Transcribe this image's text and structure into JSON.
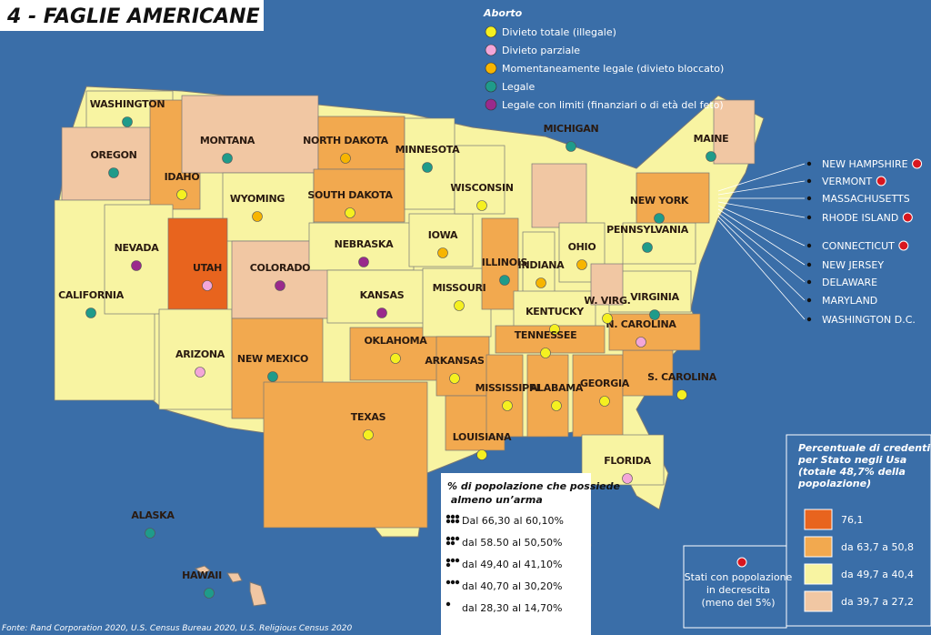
{
  "title": "4 - FAGLIE AMERICANE",
  "abortion_legend": {
    "title": "Aborto",
    "items": [
      {
        "label": "Divieto totale (illegale)",
        "color": "#f5f020"
      },
      {
        "label": "Divieto parziale",
        "color": "#f3a6d8"
      },
      {
        "label": "Momentaneamente legale (divieto bloccato)",
        "color": "#f7b500"
      },
      {
        "label": "Legale",
        "color": "#1f9b8a"
      },
      {
        "label": "Legale con limiti (finanziari o di età del feto)",
        "color": "#9a2a8c"
      }
    ]
  },
  "states": [
    "WASHINGTON",
    "OREGON",
    "CALIFORNIA",
    "IDAHO",
    "NEVADA",
    "MONTANA",
    "WYOMING",
    "UTAH",
    "ARIZONA",
    "COLORADO",
    "NEW MEXICO",
    "NORTH DAKOTA",
    "SOUTH DAKOTA",
    "NEBRASKA",
    "KANSAS",
    "OKLAHOMA",
    "TEXAS",
    "MINNESOTA",
    "IOWA",
    "MISSOURI",
    "ARKANSAS",
    "LOUISIANA",
    "WISCONSIN",
    "ILLINOIS",
    "MICHIGAN",
    "INDIANA",
    "OHIO",
    "KENTUCKY",
    "TENNESSEE",
    "MISSISSIPPI",
    "ALABAMA",
    "GEORGIA",
    "FLORIDA",
    "S. CAROLINA",
    "N. CAROLINA",
    "VIRGINIA",
    "W. VIRG.",
    "PENNSYLVANIA",
    "NEW YORK",
    "MAINE",
    "ALASKA",
    "HAWAII"
  ],
  "east_states": [
    "NEW HAMPSHIRE",
    "VERMONT",
    "MASSACHUSETTS",
    "RHODE ISLAND",
    "CONNECTICUT",
    "NEW JERSEY",
    "DELAWARE",
    "MARYLAND",
    "WASHINGTON D.C."
  ],
  "gun_legend": {
    "title": "% di popolazione che possiede almeno un’arma",
    "items": [
      "Dal 66,30 al 60,10%",
      "dal 58.50 al 50,50%",
      "dal 49,40 al 41,10%",
      "dal 40,70 al 30,20%",
      "dal 28,30 al 14,70%"
    ]
  },
  "believers_legend": {
    "title": "Percentuale di credenti per Stato negli Usa (totale 48,7% della popolazione)",
    "items": [
      {
        "label": "76,1",
        "color": "#e8641e"
      },
      {
        "label": "da 63,7 a 50,8",
        "color": "#f2a94f"
      },
      {
        "label": "da 49,7 a 40,4",
        "color": "#f8f4a2"
      },
      {
        "label": "da 39,7 a 27,2",
        "color": "#f1c7a3"
      }
    ]
  },
  "decline_legend": "Stati con popolazione in decrescita (meno del 5%)",
  "source": "Fonte: Rand Corporation 2020, U.S. Census Bureau 2020, U.S. Religious Census 2020"
}
